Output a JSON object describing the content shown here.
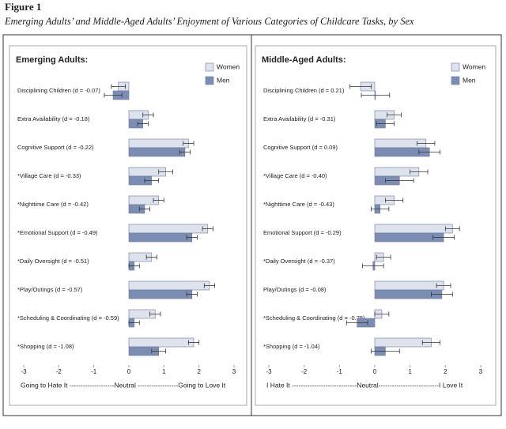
{
  "figure": {
    "label": "Figure 1",
    "caption": "Emerging Adults’ and Middle-Aged Adults’ Enjoyment of Various Categories of Childcare Tasks, by Sex"
  },
  "chart_data": [
    {
      "type": "bar",
      "orientation": "horizontal",
      "title": "Emerging Adults:",
      "x_label": "Going to Hate It --------------------Neutral ------------------Going to Love It",
      "categories": [
        "Disciplining Children (d = -0.07)",
        "Extra Availability (d = -0.18)",
        "Cognitive Support (d = -0.22)",
        "*Village Care (d = -0.33)",
        "*Nighttime Care (d = -0.42)",
        "*Emotional Support (d = -0.49)",
        "*Daily Oversight (d = -0.51)",
        "*Play/Outings (d = -0.57)",
        "*Scheduling & Coordinating (d = -0.59)",
        "*Shopping (d = -1.08)"
      ],
      "series": [
        {
          "name": "Women",
          "color": "#dde2ec",
          "values": [
            -0.3,
            0.55,
            1.7,
            1.05,
            0.85,
            2.25,
            0.65,
            2.3,
            0.75,
            1.85
          ],
          "errors": [
            0.2,
            0.15,
            0.15,
            0.2,
            0.15,
            0.15,
            0.15,
            0.15,
            0.15,
            0.15
          ]
        },
        {
          "name": "Men",
          "color": "#7b8db2",
          "values": [
            -0.45,
            0.4,
            1.6,
            0.65,
            0.45,
            1.8,
            0.15,
            1.8,
            0.15,
            0.85
          ],
          "errors": [
            0.25,
            0.15,
            0.15,
            0.2,
            0.15,
            0.15,
            0.15,
            0.15,
            0.15,
            0.2
          ]
        }
      ],
      "xlim": [
        -3,
        3
      ],
      "xticks": [
        -3,
        -2,
        -1,
        0,
        1,
        2,
        3
      ],
      "legend": "top-right"
    },
    {
      "type": "bar",
      "orientation": "horizontal",
      "title": "Middle-Aged Adults:",
      "x_label": "I Hate It -----------------------------Neutral---------------------------I Love It",
      "categories": [
        "Disciplining Children (d = 0.21)",
        "Extra Availability (d = -0.31)",
        "Cognitive Support (d = 0.09)",
        "*Village Care (d = -0.40)",
        "*Nighttime Care (d = -0.43)",
        "Emotional Support (d = -0.29)",
        "*Daily Oversight (d = -0.37)",
        "Play/Outings (d = -0.08)",
        "*Scheduling & Coordinating (d = -0.75)",
        "*Shopping (d = -1.04)"
      ],
      "series": [
        {
          "name": "Women",
          "color": "#dde2ec",
          "values": [
            -0.4,
            0.55,
            1.45,
            1.25,
            0.55,
            2.2,
            0.25,
            1.95,
            0.2,
            1.6
          ],
          "errors": [
            0.3,
            0.2,
            0.25,
            0.25,
            0.25,
            0.2,
            0.2,
            0.2,
            0.2,
            0.25
          ]
        },
        {
          "name": "Men",
          "color": "#7b8db2",
          "values": [
            0.02,
            0.3,
            1.55,
            0.7,
            0.15,
            1.95,
            -0.05,
            1.9,
            -0.5,
            0.3
          ],
          "errors": [
            0.4,
            0.25,
            0.3,
            0.4,
            0.25,
            0.3,
            0.3,
            0.3,
            0.3,
            0.4
          ]
        }
      ],
      "xlim": [
        -3,
        3
      ],
      "xticks": [
        -3,
        -2,
        -1,
        0,
        1,
        2,
        3
      ],
      "legend": "top-right"
    }
  ]
}
